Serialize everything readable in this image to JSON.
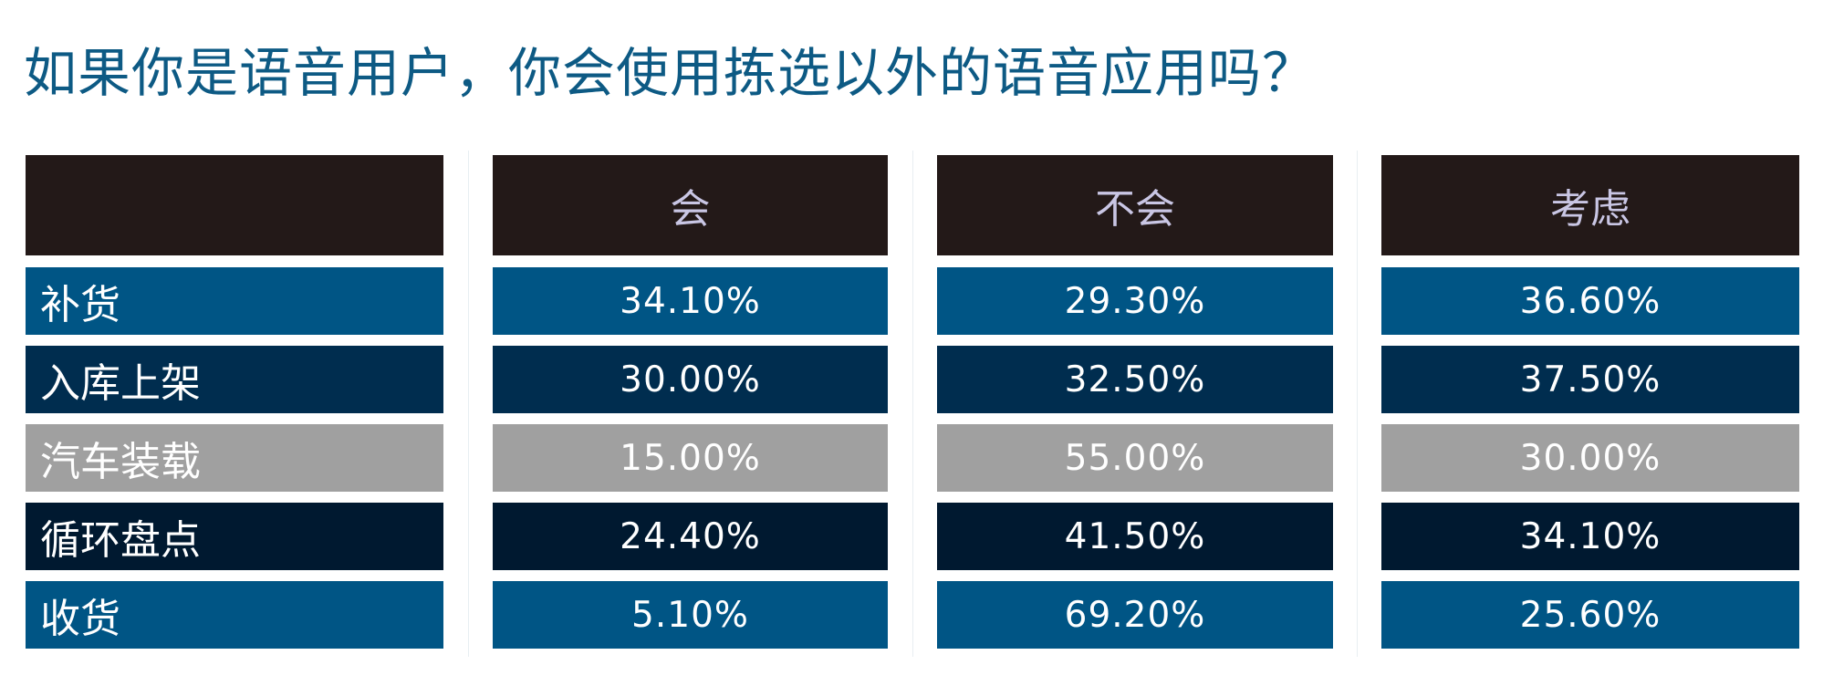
{
  "title": "如果你是语音用户，你会使用拣选以外的语音应用吗？",
  "columns": [
    "会",
    "不会",
    "考虑"
  ],
  "rows": [
    {
      "label": "补货",
      "values": [
        "34.10%",
        "29.30%",
        "36.60%"
      ],
      "color": "#005585"
    },
    {
      "label": "入库上架",
      "values": [
        "30.00%",
        "32.50%",
        "37.50%"
      ],
      "color": "#002d4f"
    },
    {
      "label": "汽车装载",
      "values": [
        "15.00%",
        "55.00%",
        "30.00%"
      ],
      "color": "#a0a0a0"
    },
    {
      "label": "循环盘点",
      "values": [
        "24.40%",
        "41.50%",
        "34.10%"
      ],
      "color": "#001930"
    },
    {
      "label": "收货",
      "values": [
        "5.10%",
        "69.20%",
        "25.60%"
      ],
      "color": "#005585"
    }
  ],
  "colors": {
    "title": "#0d5a84",
    "header_bg": "#231918",
    "header_text": "#c9c6e4"
  }
}
